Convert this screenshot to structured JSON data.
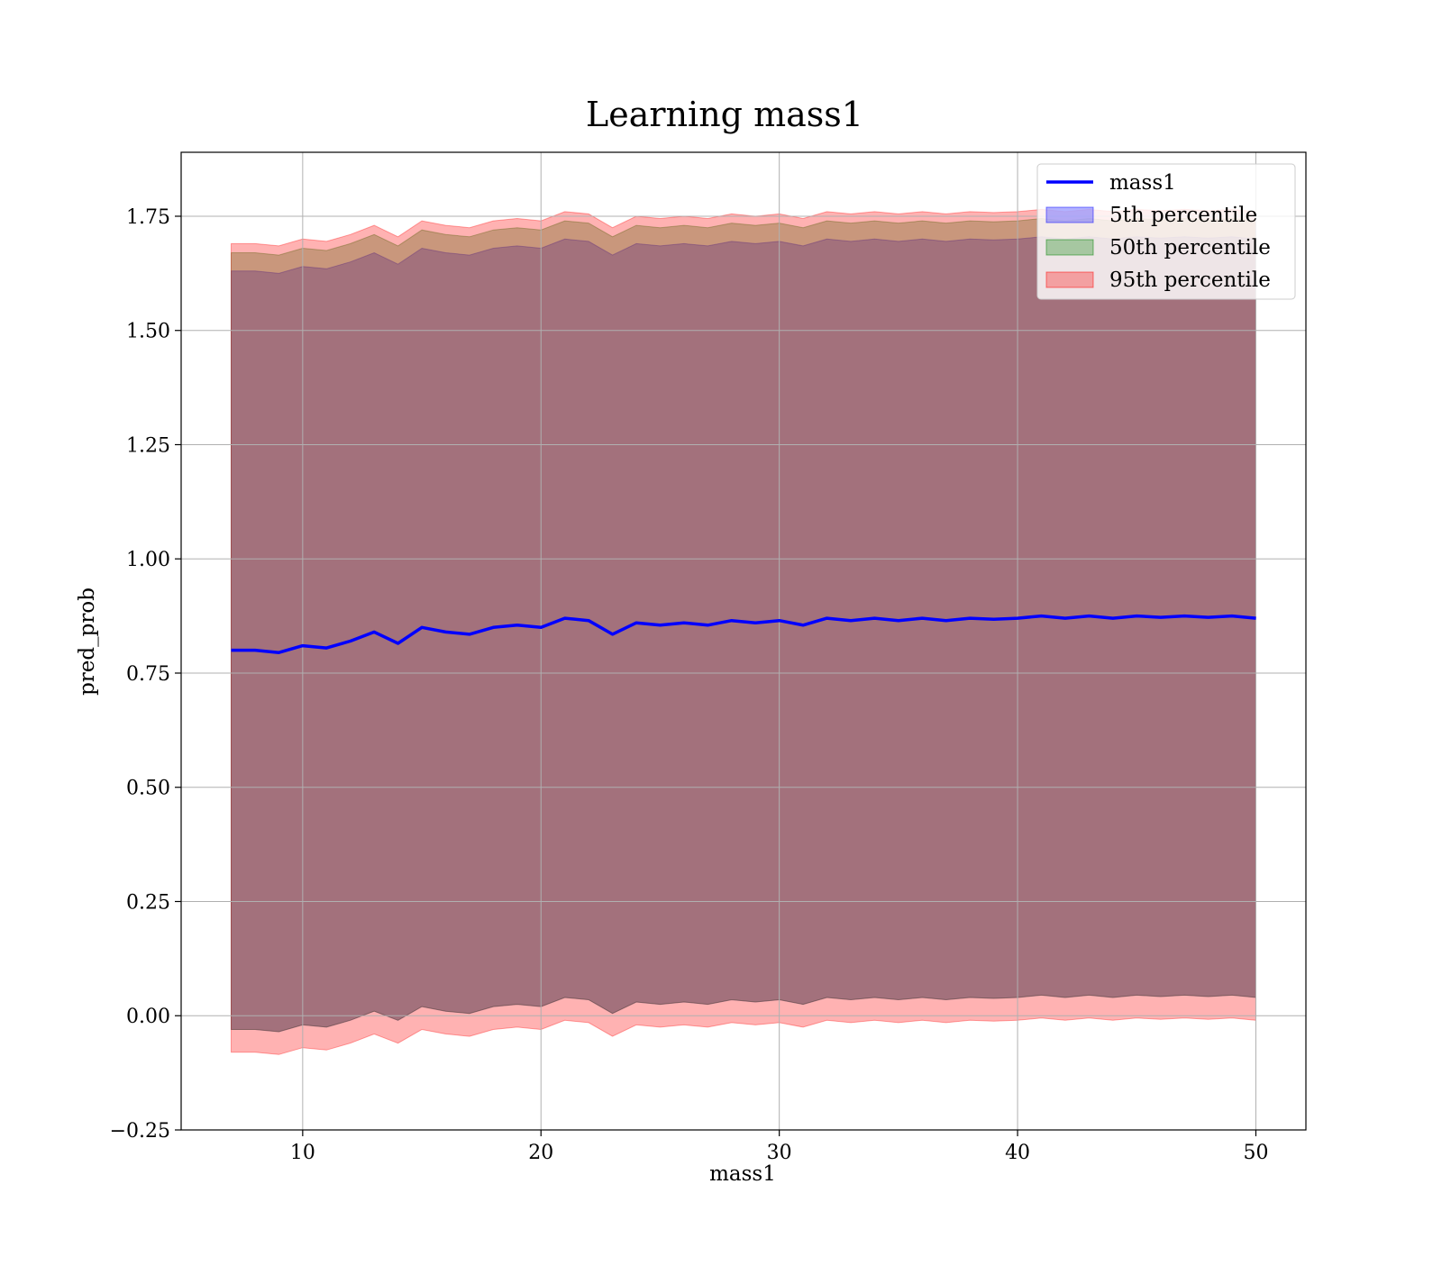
{
  "chart_data": {
    "type": "area",
    "title": "Learning mass1",
    "xlabel": "mass1",
    "ylabel": "pred_prob",
    "xlim": [
      4.9,
      52.1
    ],
    "ylim": [
      -0.25,
      1.89
    ],
    "x_ticks": [
      10,
      20,
      30,
      40,
      50
    ],
    "x_tick_labels": [
      "10",
      "20",
      "30",
      "40",
      "50"
    ],
    "y_ticks": [
      -0.25,
      0.0,
      0.25,
      0.5,
      0.75,
      1.0,
      1.25,
      1.5,
      1.75
    ],
    "y_tick_labels": [
      "−0.25",
      "0.00",
      "0.25",
      "0.50",
      "0.75",
      "1.00",
      "1.25",
      "1.50",
      "1.75"
    ],
    "grid": true,
    "legend_position": "top-right",
    "x": [
      7,
      8,
      9,
      10,
      11,
      12,
      13,
      14,
      15,
      16,
      17,
      18,
      19,
      20,
      21,
      22,
      23,
      24,
      25,
      26,
      27,
      28,
      29,
      30,
      31,
      32,
      33,
      34,
      35,
      36,
      37,
      38,
      39,
      40,
      41,
      42,
      43,
      44,
      45,
      46,
      47,
      48,
      49,
      50
    ],
    "series": [
      {
        "name": "mass1",
        "kind": "line",
        "color": "#0000ff",
        "values": [
          0.8,
          0.8,
          0.795,
          0.81,
          0.805,
          0.82,
          0.84,
          0.815,
          0.85,
          0.84,
          0.835,
          0.85,
          0.855,
          0.85,
          0.87,
          0.865,
          0.835,
          0.86,
          0.855,
          0.86,
          0.855,
          0.865,
          0.86,
          0.865,
          0.855,
          0.87,
          0.865,
          0.87,
          0.865,
          0.87,
          0.865,
          0.87,
          0.868,
          0.87,
          0.875,
          0.87,
          0.875,
          0.87,
          0.875,
          0.872,
          0.875,
          0.872,
          0.875,
          0.87
        ]
      },
      {
        "name": "5th percentile",
        "kind": "band",
        "color": "#0000ff",
        "alpha": 0.3,
        "lower": [
          -0.03,
          -0.03,
          -0.035,
          -0.02,
          -0.025,
          -0.01,
          0.01,
          -0.01,
          0.02,
          0.01,
          0.005,
          0.02,
          0.025,
          0.02,
          0.04,
          0.035,
          0.005,
          0.03,
          0.025,
          0.03,
          0.025,
          0.035,
          0.03,
          0.035,
          0.025,
          0.04,
          0.035,
          0.04,
          0.035,
          0.04,
          0.035,
          0.04,
          0.038,
          0.04,
          0.045,
          0.04,
          0.045,
          0.04,
          0.045,
          0.042,
          0.045,
          0.042,
          0.045,
          0.04
        ],
        "upper": [
          1.63,
          1.63,
          1.625,
          1.64,
          1.635,
          1.65,
          1.67,
          1.645,
          1.68,
          1.67,
          1.665,
          1.68,
          1.685,
          1.68,
          1.7,
          1.695,
          1.665,
          1.69,
          1.685,
          1.69,
          1.685,
          1.695,
          1.69,
          1.695,
          1.685,
          1.7,
          1.695,
          1.7,
          1.695,
          1.7,
          1.695,
          1.7,
          1.698,
          1.7,
          1.705,
          1.7,
          1.705,
          1.7,
          1.705,
          1.702,
          1.705,
          1.702,
          1.705,
          1.7
        ]
      },
      {
        "name": "50th percentile",
        "kind": "band",
        "color": "#008000",
        "alpha": 0.3,
        "lower": [
          -0.03,
          -0.03,
          -0.035,
          -0.02,
          -0.025,
          -0.01,
          0.01,
          -0.01,
          0.02,
          0.01,
          0.005,
          0.02,
          0.025,
          0.02,
          0.04,
          0.035,
          0.005,
          0.03,
          0.025,
          0.03,
          0.025,
          0.035,
          0.03,
          0.035,
          0.025,
          0.04,
          0.035,
          0.04,
          0.035,
          0.04,
          0.035,
          0.04,
          0.038,
          0.04,
          0.045,
          0.04,
          0.045,
          0.04,
          0.045,
          0.042,
          0.045,
          0.042,
          0.045,
          0.04
        ],
        "upper": [
          1.67,
          1.67,
          1.665,
          1.68,
          1.675,
          1.69,
          1.71,
          1.685,
          1.72,
          1.71,
          1.705,
          1.72,
          1.725,
          1.72,
          1.74,
          1.735,
          1.705,
          1.73,
          1.725,
          1.73,
          1.725,
          1.735,
          1.73,
          1.735,
          1.725,
          1.74,
          1.735,
          1.74,
          1.735,
          1.74,
          1.735,
          1.74,
          1.738,
          1.74,
          1.745,
          1.74,
          1.745,
          1.74,
          1.745,
          1.742,
          1.745,
          1.742,
          1.745,
          1.74
        ]
      },
      {
        "name": "95th percentile",
        "kind": "band",
        "color": "#ff0000",
        "alpha": 0.3,
        "lower": [
          -0.08,
          -0.08,
          -0.085,
          -0.07,
          -0.075,
          -0.06,
          -0.04,
          -0.06,
          -0.03,
          -0.04,
          -0.045,
          -0.03,
          -0.025,
          -0.03,
          -0.01,
          -0.015,
          -0.045,
          -0.02,
          -0.025,
          -0.02,
          -0.025,
          -0.015,
          -0.02,
          -0.015,
          -0.025,
          -0.01,
          -0.015,
          -0.01,
          -0.015,
          -0.01,
          -0.015,
          -0.01,
          -0.012,
          -0.01,
          -0.005,
          -0.01,
          -0.005,
          -0.01,
          -0.005,
          -0.008,
          -0.005,
          -0.008,
          -0.005,
          -0.01
        ],
        "upper": [
          1.69,
          1.69,
          1.685,
          1.7,
          1.695,
          1.71,
          1.73,
          1.705,
          1.74,
          1.73,
          1.725,
          1.74,
          1.745,
          1.74,
          1.76,
          1.755,
          1.725,
          1.75,
          1.745,
          1.75,
          1.745,
          1.755,
          1.75,
          1.755,
          1.745,
          1.76,
          1.755,
          1.76,
          1.755,
          1.76,
          1.755,
          1.76,
          1.758,
          1.76,
          1.765,
          1.76,
          1.765,
          1.76,
          1.765,
          1.762,
          1.765,
          1.762,
          1.765,
          1.76
        ]
      }
    ]
  }
}
